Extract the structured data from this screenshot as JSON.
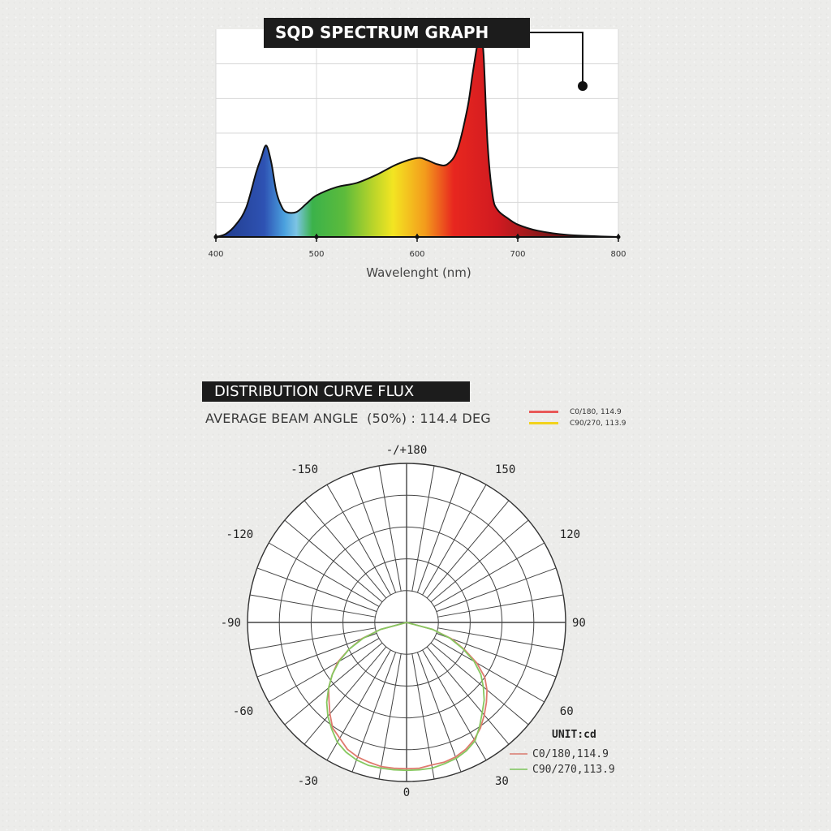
{
  "chart_data": [
    {
      "type": "area",
      "title": "SQD SPECTRUM GRAPH",
      "xlabel": "Wavelenght (nm)",
      "ylabel": "",
      "x_ticks": [
        "400",
        "500",
        "600",
        "700",
        "800"
      ],
      "xlim": [
        400,
        800
      ],
      "ylim": [
        0,
        1
      ],
      "grid": true,
      "x": [
        400,
        410,
        420,
        430,
        440,
        445,
        450,
        455,
        460,
        465,
        470,
        480,
        490,
        500,
        520,
        540,
        560,
        580,
        600,
        610,
        620,
        630,
        640,
        650,
        655,
        660,
        663,
        666,
        670,
        675,
        680,
        690,
        700,
        720,
        750,
        800
      ],
      "values": [
        0.0,
        0.015,
        0.06,
        0.14,
        0.31,
        0.38,
        0.44,
        0.36,
        0.22,
        0.15,
        0.12,
        0.12,
        0.16,
        0.2,
        0.24,
        0.26,
        0.3,
        0.35,
        0.38,
        0.37,
        0.35,
        0.35,
        0.42,
        0.62,
        0.78,
        0.93,
        0.97,
        0.88,
        0.45,
        0.2,
        0.13,
        0.09,
        0.06,
        0.03,
        0.01,
        0.0
      ]
    },
    {
      "type": "polar",
      "title": "DISTRIBUTION CURVE FLUX",
      "subtitle": "AVERAGE BEAM ANGLE  (50%) : 114.4 DEG",
      "unit": "UNIT:cd",
      "angle_labels": [
        {
          "angle": 180,
          "text": "-/+180"
        },
        {
          "angle": -150,
          "text": "-150"
        },
        {
          "angle": 150,
          "text": "150"
        },
        {
          "angle": -120,
          "text": "-120"
        },
        {
          "angle": 120,
          "text": "120"
        },
        {
          "angle": -90,
          "text": "-90"
        },
        {
          "angle": 90,
          "text": "90"
        },
        {
          "angle": -60,
          "text": "-60"
        },
        {
          "angle": 60,
          "text": "60"
        },
        {
          "angle": -30,
          "text": "-30"
        },
        {
          "angle": 30,
          "text": "30"
        },
        {
          "angle": 0,
          "text": "0"
        }
      ],
      "legend_top": [
        {
          "name": "C0/180, 114.9",
          "color": "#e85858"
        },
        {
          "name": "C90/270, 113.9",
          "color": "#f2d21c"
        }
      ],
      "legend_bottom": [
        {
          "name": "C0/180,114.9",
          "color": "#d97a6e"
        },
        {
          "name": "C90/270,113.9",
          "color": "#7dc45a"
        }
      ],
      "series": [
        {
          "name": "C0/180,114.9",
          "color": "#df7a6e",
          "angles": [
            -75,
            -70,
            -65,
            -60,
            -55,
            -50,
            -45,
            -40,
            -35,
            -30,
            -25,
            -20,
            -15,
            -10,
            -5,
            0,
            5,
            10,
            15,
            20,
            25,
            30,
            35,
            40,
            45,
            50,
            55,
            60,
            65,
            70,
            75
          ],
          "r": [
            0.17,
            0.3,
            0.4,
            0.5,
            0.57,
            0.64,
            0.69,
            0.75,
            0.81,
            0.84,
            0.88,
            0.9,
            0.91,
            0.92,
            0.92,
            0.92,
            0.92,
            0.91,
            0.91,
            0.9,
            0.88,
            0.85,
            0.81,
            0.76,
            0.71,
            0.66,
            0.6,
            0.51,
            0.4,
            0.3,
            0.17
          ]
        },
        {
          "name": "C90/270,113.9",
          "color": "#86c860",
          "angles": [
            -75,
            -70,
            -65,
            -60,
            -55,
            -50,
            -45,
            -40,
            -35,
            -30,
            -25,
            -20,
            -15,
            -10,
            -5,
            0,
            5,
            10,
            15,
            20,
            25,
            30,
            35,
            40,
            45,
            50,
            55,
            60,
            65,
            70,
            75
          ],
          "r": [
            0.17,
            0.29,
            0.4,
            0.49,
            0.57,
            0.64,
            0.71,
            0.77,
            0.82,
            0.87,
            0.9,
            0.92,
            0.93,
            0.93,
            0.93,
            0.93,
            0.93,
            0.93,
            0.92,
            0.91,
            0.89,
            0.86,
            0.8,
            0.74,
            0.69,
            0.63,
            0.57,
            0.49,
            0.39,
            0.29,
            0.17
          ]
        }
      ]
    }
  ]
}
